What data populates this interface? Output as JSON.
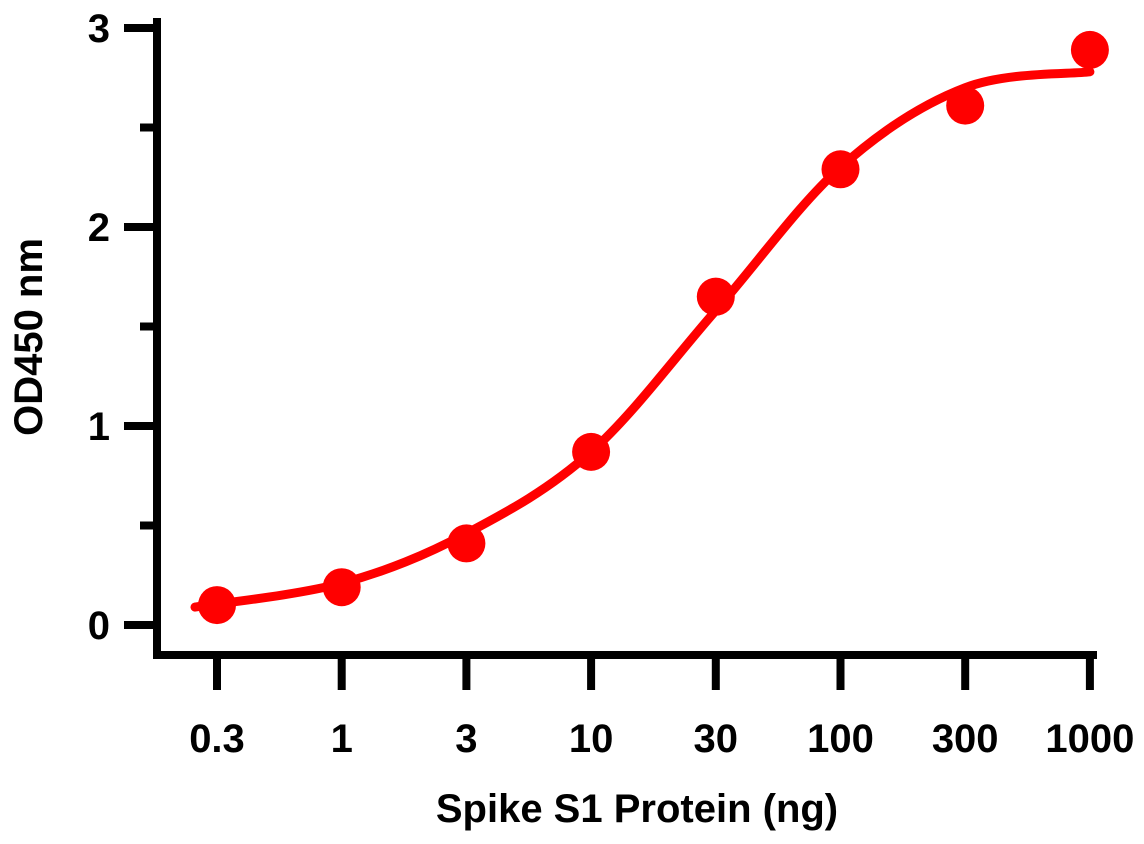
{
  "chart_data": {
    "type": "scatter",
    "title": "",
    "xlabel": "Spike S1 Protein (ng)",
    "ylabel": "OD450 nm",
    "x_scale": "log",
    "x_ticks": [
      "0.3",
      "1",
      "3",
      "10",
      "30",
      "100",
      "300",
      "1000"
    ],
    "y_ticks": [
      "0",
      "1",
      "2",
      "3"
    ],
    "ylim": [
      0,
      3
    ],
    "grid": false,
    "color": "#ff0000",
    "series": [
      {
        "type": "scatter",
        "x": [
          0.3,
          1,
          3,
          10,
          30,
          100,
          300,
          1000
        ],
        "y": [
          0.1,
          0.19,
          0.41,
          0.87,
          1.65,
          2.29,
          2.61,
          2.89
        ]
      },
      {
        "type": "line",
        "x": [
          0.3,
          1,
          3,
          10,
          30,
          100,
          300,
          1000
        ],
        "y": [
          0.09,
          0.21,
          0.46,
          0.87,
          1.58,
          2.3,
          2.7,
          2.78
        ]
      }
    ]
  }
}
